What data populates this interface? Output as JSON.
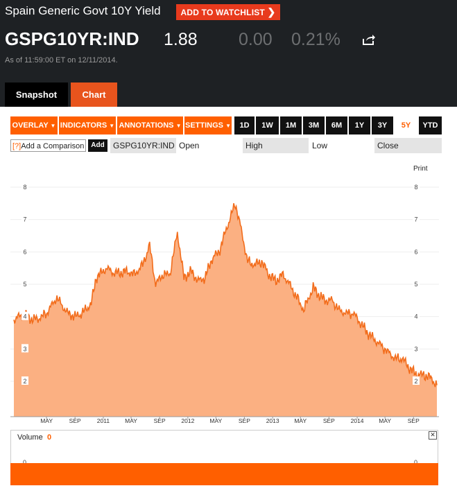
{
  "header": {
    "title": "Spain Generic Govt 10Y Yield",
    "watchlist_label": "ADD TO WATCHLIST",
    "ticker": "GSPG10YR:IND",
    "price": "1.88",
    "change": "0.00",
    "change_pct": "0.21%",
    "as_of": "As of 11:59:00 ET on 12/11/2014."
  },
  "tabs": [
    {
      "label": "Snapshot"
    },
    {
      "label": "Chart"
    }
  ],
  "toolbar": {
    "menus": [
      "OVERLAY",
      "INDICATORS",
      "ANNOTATIONS",
      "SETTINGS"
    ],
    "ranges": [
      "1D",
      "1W",
      "1M",
      "3M",
      "6M",
      "1Y",
      "3Y",
      "5Y",
      "YTD"
    ],
    "selected_range": "5Y"
  },
  "compare": {
    "placeholder": "Add a Comparison",
    "help": "[?]",
    "add_label": "Add",
    "symbol": "GSPG10YR:IND",
    "open_label": "Open",
    "high_label": "High",
    "low_label": "Low",
    "close_label": "Close"
  },
  "print_label": "Print",
  "volume": {
    "label": "Volume",
    "value": "0",
    "axis_value": "0",
    "close_icon": "close-icon"
  },
  "colors": {
    "accent": "#ff5f00",
    "header_bg": "#1e2124",
    "area_fill": "#fbb082",
    "line": "#f26c1b",
    "red": "#e83a1d"
  },
  "chart_data": {
    "type": "area",
    "x_labels": [
      "MAY",
      "SEP",
      "2011",
      "MAY",
      "SEP",
      "2012",
      "MAY",
      "SEP",
      "2013",
      "MAY",
      "SEP",
      "2014",
      "MAY",
      "SEP"
    ],
    "y_ticks": [
      2,
      3,
      4,
      5,
      6,
      7,
      8
    ],
    "ylim": [
      1,
      8.5
    ],
    "x_start": "2009-12-11",
    "x_end": "2014-12-11",
    "series": [
      {
        "name": "GSPG10YR:IND",
        "points": [
          [
            "2009-12-11",
            3.9
          ],
          [
            "2010-01-01",
            4.0
          ],
          [
            "2010-02-01",
            4.05
          ],
          [
            "2010-03-01",
            3.9
          ],
          [
            "2010-04-01",
            3.95
          ],
          [
            "2010-05-01",
            4.1
          ],
          [
            "2010-06-15",
            4.6
          ],
          [
            "2010-07-01",
            4.4
          ],
          [
            "2010-08-01",
            4.1
          ],
          [
            "2010-09-01",
            4.0
          ],
          [
            "2010-10-01",
            4.1
          ],
          [
            "2010-11-10",
            4.4
          ],
          [
            "2010-12-01",
            5.2
          ],
          [
            "2011-01-15",
            5.5
          ],
          [
            "2011-02-15",
            5.35
          ],
          [
            "2011-03-15",
            5.35
          ],
          [
            "2011-04-15",
            5.4
          ],
          [
            "2011-05-15",
            5.3
          ],
          [
            "2011-06-20",
            5.6
          ],
          [
            "2011-07-20",
            6.2
          ],
          [
            "2011-08-15",
            5.0
          ],
          [
            "2011-09-15",
            5.3
          ],
          [
            "2011-10-15",
            5.3
          ],
          [
            "2011-11-17",
            6.6
          ],
          [
            "2011-12-15",
            5.2
          ],
          [
            "2012-01-15",
            5.4
          ],
          [
            "2012-02-15",
            5.1
          ],
          [
            "2012-03-15",
            5.2
          ],
          [
            "2012-04-15",
            5.8
          ],
          [
            "2012-05-15",
            6.0
          ],
          [
            "2012-06-15",
            6.7
          ],
          [
            "2012-07-24",
            7.5
          ],
          [
            "2012-08-15",
            6.8
          ],
          [
            "2012-09-15",
            5.7
          ],
          [
            "2012-10-15",
            5.6
          ],
          [
            "2012-11-15",
            5.7
          ],
          [
            "2012-12-15",
            5.3
          ],
          [
            "2013-01-15",
            5.1
          ],
          [
            "2013-02-15",
            5.3
          ],
          [
            "2013-03-15",
            5.0
          ],
          [
            "2013-04-15",
            4.6
          ],
          [
            "2013-05-15",
            4.2
          ],
          [
            "2013-06-25",
            4.9
          ],
          [
            "2013-07-15",
            4.7
          ],
          [
            "2013-08-15",
            4.5
          ],
          [
            "2013-09-15",
            4.5
          ],
          [
            "2013-10-15",
            4.2
          ],
          [
            "2013-11-15",
            4.1
          ],
          [
            "2013-12-15",
            4.1
          ],
          [
            "2014-01-15",
            3.8
          ],
          [
            "2014-02-15",
            3.5
          ],
          [
            "2014-03-15",
            3.3
          ],
          [
            "2014-04-15",
            3.1
          ],
          [
            "2014-05-15",
            2.9
          ],
          [
            "2014-06-15",
            2.7
          ],
          [
            "2014-07-15",
            2.7
          ],
          [
            "2014-08-15",
            2.4
          ],
          [
            "2014-09-15",
            2.2
          ],
          [
            "2014-10-15",
            2.2
          ],
          [
            "2014-11-15",
            2.1
          ],
          [
            "2014-12-11",
            1.88
          ]
        ]
      }
    ]
  }
}
